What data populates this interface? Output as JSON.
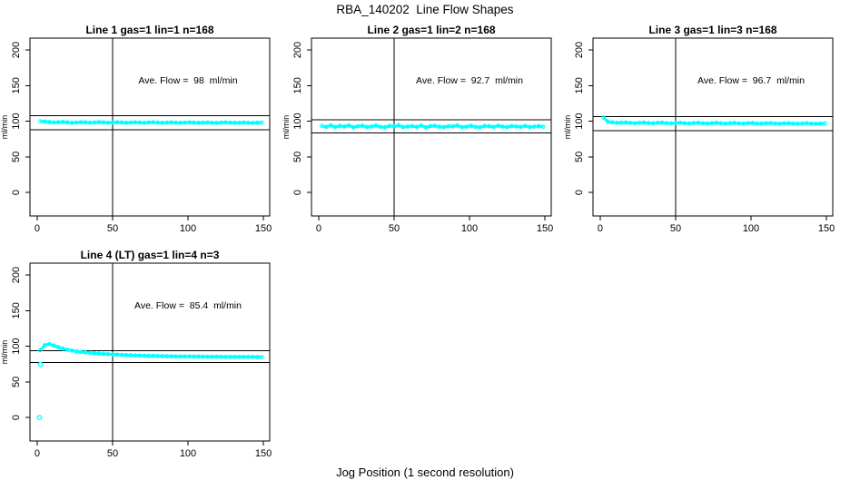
{
  "chart_data": {
    "type": "scatter",
    "title": "RBA_140202  Line Flow Shapes",
    "xlabel": "Jog Position (1 second resolution)",
    "ylabel": "ml/min",
    "point_color": "#00ffff",
    "line_color": "#000000",
    "xlim": [
      -4.8,
      154.2
    ],
    "ylim": [
      -33,
      216.6
    ],
    "x_ticks": [
      0,
      50,
      100,
      150
    ],
    "y_ticks": [
      0,
      50,
      100,
      150,
      200
    ],
    "vline_x": 50,
    "legend": "none",
    "grid": "off",
    "x": [
      2,
      5,
      8,
      11,
      14,
      17,
      20,
      23,
      26,
      29,
      32,
      35,
      38,
      41,
      44,
      47,
      50,
      53,
      56,
      59,
      62,
      65,
      68,
      71,
      74,
      77,
      80,
      83,
      86,
      89,
      92,
      95,
      98,
      101,
      104,
      107,
      110,
      113,
      116,
      119,
      122,
      125,
      128,
      131,
      134,
      137,
      140,
      143,
      146,
      149
    ],
    "panels": [
      {
        "title": "Line 1 gas=1 lin=1 n=168",
        "annotation": "Ave. Flow =  98  ml/min",
        "ave_flow": 98,
        "upper_ref": 107.8,
        "lower_ref": 88.2,
        "y": [
          100,
          99.5,
          98.8,
          98.2,
          98.5,
          98.9,
          98.3,
          97.8,
          98.1,
          98.6,
          98.4,
          97.9,
          98.2,
          98.7,
          98.3,
          97.8,
          98.0,
          98.5,
          98.2,
          97.7,
          98.1,
          98.4,
          98.0,
          97.6,
          98.2,
          98.5,
          98.1,
          97.7,
          98.0,
          98.3,
          97.9,
          97.6,
          98.1,
          98.4,
          98.0,
          97.7,
          97.9,
          98.2,
          97.8,
          97.5,
          98.0,
          98.3,
          97.9,
          97.6,
          97.8,
          98.1,
          97.7,
          97.5,
          97.9,
          98.0
        ],
        "extra_points": []
      },
      {
        "title": "Line 2 gas=1 lin=2 n=168",
        "annotation": "Ave. Flow =  92.7  ml/min",
        "ave_flow": 92.7,
        "upper_ref": 102.0,
        "lower_ref": 83.4,
        "y": [
          93.5,
          92.0,
          94.1,
          91.8,
          93.2,
          92.5,
          94.0,
          91.5,
          92.8,
          93.6,
          91.9,
          92.4,
          93.8,
          92.1,
          91.6,
          93.3,
          92.7,
          94.2,
          91.8,
          92.5,
          93.1,
          92.0,
          93.7,
          91.5,
          92.9,
          93.4,
          92.2,
          91.8,
          93.0,
          92.6,
          93.9,
          91.7,
          92.3,
          93.5,
          92.0,
          91.6,
          93.2,
          92.8,
          91.9,
          93.6,
          92.4,
          91.7,
          93.1,
          92.6,
          92.0,
          93.3,
          91.8,
          92.5,
          93.0,
          92.3
        ],
        "extra_points": []
      },
      {
        "title": "Line 3 gas=1 lin=3 n=168",
        "annotation": "Ave. Flow =  96.7  ml/min",
        "ave_flow": 96.7,
        "upper_ref": 106.4,
        "lower_ref": 87.0,
        "y": [
          105.0,
          99.5,
          98.3,
          97.6,
          97.9,
          98.2,
          97.5,
          97.1,
          97.8,
          98.0,
          97.4,
          97.0,
          97.6,
          97.9,
          97.3,
          96.9,
          97.5,
          97.8,
          97.2,
          96.8,
          97.4,
          97.7,
          97.1,
          96.8,
          97.3,
          97.6,
          97.0,
          96.7,
          97.2,
          97.5,
          96.9,
          96.6,
          97.1,
          97.4,
          96.8,
          96.5,
          97.0,
          97.3,
          96.7,
          96.5,
          96.9,
          97.2,
          96.6,
          96.4,
          96.8,
          97.1,
          96.5,
          96.3,
          96.7,
          96.9
        ],
        "extra_points": []
      },
      {
        "title": "Line 4 (LT) gas=1 lin=4 n=3",
        "annotation": "Ave. Flow =  85.4  ml/min",
        "ave_flow": 85.4,
        "upper_ref": 93.9,
        "lower_ref": 76.9,
        "y": [
          94.5,
          101.5,
          103.0,
          101.0,
          98.5,
          96.5,
          95.0,
          93.8,
          92.8,
          92.0,
          91.3,
          90.7,
          90.2,
          89.7,
          89.3,
          88.9,
          88.5,
          88.2,
          87.9,
          87.6,
          87.4,
          87.1,
          86.9,
          86.7,
          86.5,
          86.4,
          86.2,
          86.1,
          85.9,
          85.8,
          85.7,
          85.6,
          85.5,
          85.5,
          85.4,
          85.4,
          85.3,
          85.3,
          85.2,
          85.2,
          85.1,
          85.1,
          85.0,
          85.0,
          85.0,
          84.9,
          84.9,
          84.9,
          84.8,
          84.8
        ],
        "extra_points": [
          [
            1.5,
            0
          ],
          [
            2.2,
            74.5
          ]
        ]
      }
    ]
  }
}
